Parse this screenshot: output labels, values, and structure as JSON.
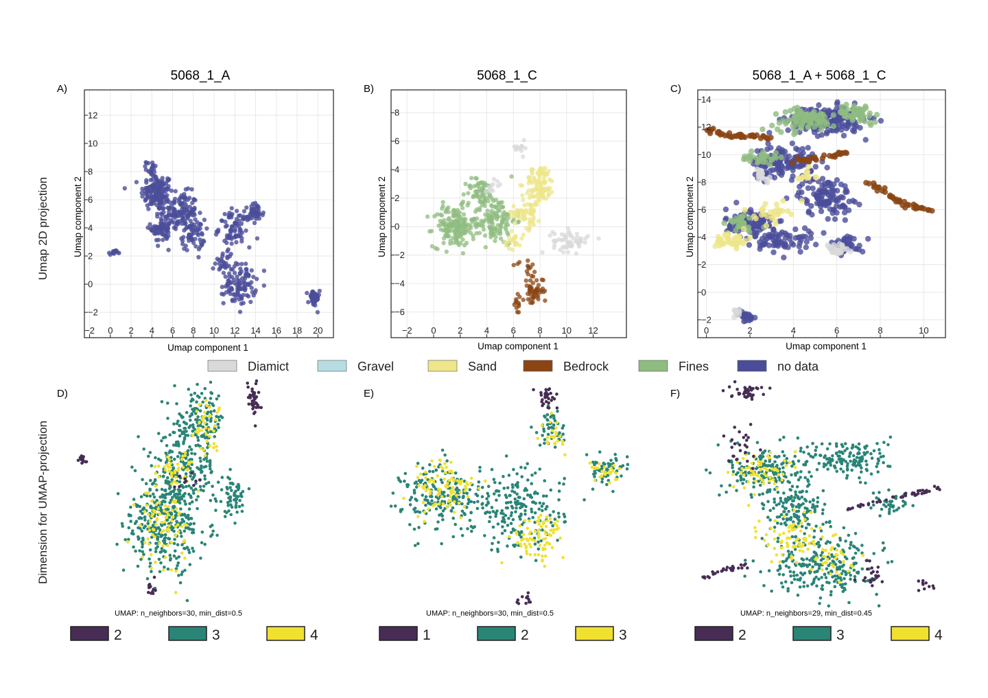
{
  "row_labels": {
    "top": "Umap 2D projection",
    "bottom": "Dimension for UMAP-projection"
  },
  "legend": [
    {
      "label": "Diamict",
      "color": "#d9d9d9"
    },
    {
      "label": "Gravel",
      "color": "#b7dce2"
    },
    {
      "label": "Sand",
      "color": "#eee68a"
    },
    {
      "label": "Bedrock",
      "color": "#8b4513"
    },
    {
      "label": "Fines",
      "color": "#8fbc80"
    },
    {
      "label": "no data",
      "color": "#4b4d9a"
    }
  ],
  "chart_data": [
    {
      "panel": "A)",
      "type": "scatter",
      "title": "5068_1_A",
      "xlabel": "Umap component 1",
      "ylabel": "Umap  component 2",
      "xlim": [
        -2.5,
        21.5
      ],
      "ylim": [
        -3.8,
        13.8
      ],
      "xticks": [
        -2,
        0,
        2,
        4,
        6,
        8,
        10,
        12,
        14,
        16,
        18,
        20
      ],
      "yticks": [
        -2,
        0,
        2,
        4,
        6,
        8,
        10,
        12
      ],
      "grid": true,
      "series": [
        {
          "name": "no data",
          "color": "#4b4d9a",
          "clusters": [
            [
              4.5,
              6.5,
              1.4,
              1.2,
              140
            ],
            [
              6.8,
              5.2,
              1.4,
              1.2,
              120
            ],
            [
              5.0,
              4.0,
              1.0,
              1.0,
              70
            ],
            [
              8.0,
              3.5,
              1.0,
              1.0,
              60
            ],
            [
              12.0,
              4.0,
              1.4,
              1.2,
              80
            ],
            [
              14.0,
              5.0,
              0.7,
              0.7,
              40
            ],
            [
              12.5,
              0.0,
              1.4,
              1.3,
              100
            ],
            [
              11.0,
              1.5,
              0.8,
              0.8,
              30
            ],
            [
              4.0,
              8.2,
              0.5,
              0.5,
              20
            ],
            [
              0.3,
              2.2,
              0.4,
              0.2,
              12
            ],
            [
              19.6,
              -1.0,
              0.5,
              0.6,
              45
            ]
          ]
        }
      ]
    },
    {
      "panel": "B)",
      "type": "scatter",
      "title": "5068_1_C",
      "xlabel": "Umap component 1",
      "ylabel": "Umap  component 2",
      "xlim": [
        -3.2,
        14.5
      ],
      "ylim": [
        -7.8,
        9.6
      ],
      "xticks": [
        -2,
        0,
        2,
        4,
        6,
        8,
        10,
        12
      ],
      "yticks": [
        -6,
        -4,
        -2,
        0,
        2,
        4,
        6,
        8
      ],
      "grid": true,
      "series": [
        {
          "name": "Fines",
          "color": "#8fbc80",
          "clusters": [
            [
              1.5,
              0.0,
              1.4,
              1.3,
              150
            ],
            [
              4.5,
              0.5,
              1.5,
              1.6,
              140
            ],
            [
              3.5,
              2.5,
              1.0,
              0.8,
              50
            ]
          ]
        },
        {
          "name": "Sand",
          "color": "#eee68a",
          "clusters": [
            [
              8.0,
              3.0,
              1.0,
              1.2,
              90
            ],
            [
              7.0,
              1.0,
              1.0,
              1.0,
              60
            ],
            [
              6.0,
              -1.0,
              0.7,
              0.5,
              20
            ]
          ]
        },
        {
          "name": "Diamict",
          "color": "#d9d9d9",
          "clusters": [
            [
              10.3,
              -1.0,
              1.2,
              0.7,
              60
            ],
            [
              6.5,
              5.5,
              0.5,
              0.4,
              12
            ],
            [
              4.5,
              3.0,
              0.6,
              0.4,
              12
            ]
          ]
        },
        {
          "name": "Bedrock",
          "color": "#8b4513",
          "clusters": [
            [
              7.5,
              -4.5,
              0.7,
              1.0,
              55
            ],
            [
              6.3,
              -5.5,
              0.3,
              0.6,
              12
            ],
            [
              7.0,
              -2.8,
              0.8,
              0.3,
              10
            ]
          ]
        }
      ]
    },
    {
      "panel": "C)",
      "type": "scatter",
      "title": "5068_1_A + 5068_1_C",
      "xlabel": "Umap component 1",
      "ylabel": "Umap  component 2",
      "xlim": [
        -0.4,
        11.0
      ],
      "ylim": [
        -3.3,
        14.7
      ],
      "xticks": [
        0,
        2,
        4,
        6,
        8,
        10
      ],
      "yticks": [
        -2,
        0,
        2,
        4,
        6,
        8,
        10,
        12,
        14
      ],
      "grid": true,
      "series": [
        {
          "name": "no data",
          "color": "#4b4d9a",
          "clusters": [
            [
              5.5,
              12.5,
              1.6,
              0.9,
              200
            ],
            [
              3.5,
              9.5,
              1.3,
              1.0,
              120
            ],
            [
              5.5,
              7.0,
              1.1,
              1.3,
              110
            ],
            [
              2.0,
              5.0,
              1.0,
              1.0,
              110
            ],
            [
              3.5,
              3.8,
              1.2,
              0.8,
              70
            ],
            [
              6.5,
              3.5,
              0.7,
              0.6,
              40
            ],
            [
              1.8,
              -1.7,
              0.4,
              0.4,
              25
            ]
          ]
        },
        {
          "name": "Fines",
          "color": "#8fbc80",
          "clusters": [
            [
              4.5,
              12.5,
              1.3,
              0.7,
              90
            ],
            [
              7.0,
              13.0,
              0.9,
              0.6,
              50
            ],
            [
              2.5,
              9.8,
              0.8,
              0.5,
              30
            ],
            [
              1.5,
              5.0,
              0.8,
              0.6,
              30
            ]
          ]
        },
        {
          "name": "Sand",
          "color": "#eee68a",
          "clusters": [
            [
              1.2,
              3.8,
              0.7,
              0.5,
              40
            ],
            [
              3.0,
              5.8,
              0.7,
              0.7,
              30
            ],
            [
              4.5,
              8.5,
              0.5,
              0.4,
              12
            ]
          ]
        },
        {
          "name": "Diamict",
          "color": "#d9d9d9",
          "clusters": [
            [
              6.0,
              3.0,
              0.5,
              0.5,
              25
            ],
            [
              2.5,
              8.5,
              0.5,
              0.6,
              15
            ],
            [
              1.4,
              -1.5,
              0.3,
              0.3,
              8
            ]
          ]
        },
        {
          "name": "Bedrock",
          "color": "#8b4513",
          "paths": [
            [
              [
                0.0,
                11.8
              ],
              [
                1.0,
                11.4
              ],
              [
                2.0,
                11.3
              ],
              [
                3.0,
                11.2
              ]
            ],
            [
              [
                7.5,
                8.0
              ],
              [
                8.5,
                6.9
              ],
              [
                9.5,
                6.2
              ],
              [
                10.5,
                5.9
              ]
            ],
            [
              [
                4.0,
                9.5
              ],
              [
                5.5,
                9.8
              ],
              [
                6.5,
                10.2
              ]
            ]
          ]
        }
      ]
    },
    {
      "panel": "D)",
      "type": "scatter",
      "note": "UMAP: n_neighbors=30, min_dist=0.5",
      "categories": [
        {
          "label": "2",
          "color": "#472d54"
        },
        {
          "label": "3",
          "color": "#2a8577"
        },
        {
          "label": "4",
          "color": "#f0e130"
        }
      ],
      "series": [
        {
          "name": "3",
          "color": "#2a8577",
          "clusters": [
            [
              0.52,
              0.4,
              0.18,
              0.22,
              330
            ],
            [
              0.6,
              0.62,
              0.15,
              0.14,
              140
            ],
            [
              0.67,
              0.82,
              0.12,
              0.12,
              140
            ],
            [
              0.84,
              0.48,
              0.07,
              0.08,
              60
            ],
            [
              0.37,
              0.35,
              0.07,
              0.15,
              60
            ]
          ]
        },
        {
          "name": "4",
          "color": "#f0e130",
          "clusters": [
            [
              0.48,
              0.35,
              0.12,
              0.15,
              80
            ],
            [
              0.55,
              0.6,
              0.08,
              0.08,
              40
            ],
            [
              0.7,
              0.8,
              0.08,
              0.1,
              40
            ]
          ]
        },
        {
          "name": "2",
          "color": "#472d54",
          "clusters": [
            [
              0.06,
              0.65,
              0.02,
              0.02,
              14
            ],
            [
              0.95,
              0.92,
              0.03,
              0.07,
              40
            ],
            [
              0.42,
              0.08,
              0.02,
              0.05,
              12
            ],
            [
              0.6,
              0.55,
              0.05,
              0.05,
              10
            ]
          ]
        }
      ]
    },
    {
      "panel": "E)",
      "type": "scatter",
      "note": "UMAP: n_neighbors=30, min_dist=0.5",
      "categories": [
        {
          "label": "1",
          "color": "#472d54"
        },
        {
          "label": "2",
          "color": "#2a8577"
        },
        {
          "label": "3",
          "color": "#f0e130"
        }
      ],
      "series": [
        {
          "name": "2",
          "color": "#2a8577",
          "clusters": [
            [
              0.25,
              0.48,
              0.16,
              0.14,
              220
            ],
            [
              0.55,
              0.42,
              0.16,
              0.16,
              200
            ],
            [
              0.9,
              0.6,
              0.08,
              0.06,
              60
            ],
            [
              0.68,
              0.78,
              0.05,
              0.07,
              50
            ]
          ]
        },
        {
          "name": "3",
          "color": "#f0e130",
          "clusters": [
            [
              0.25,
              0.52,
              0.12,
              0.12,
              90
            ],
            [
              0.62,
              0.3,
              0.1,
              0.1,
              80
            ],
            [
              0.9,
              0.6,
              0.06,
              0.04,
              25
            ],
            [
              0.68,
              0.75,
              0.04,
              0.06,
              25
            ]
          ]
        },
        {
          "name": "1",
          "color": "#472d54",
          "clusters": [
            [
              0.66,
              0.92,
              0.04,
              0.04,
              30
            ],
            [
              0.57,
              0.03,
              0.03,
              0.02,
              12
            ]
          ]
        }
      ]
    },
    {
      "panel": "F)",
      "type": "scatter",
      "note": "UMAP: n_neighbors=29, min_dist=0.45",
      "categories": [
        {
          "label": "2",
          "color": "#472d54"
        },
        {
          "label": "3",
          "color": "#2a8577"
        },
        {
          "label": "4",
          "color": "#f0e130"
        }
      ],
      "series": [
        {
          "name": "3",
          "color": "#2a8577",
          "clusters": [
            [
              0.52,
              0.18,
              0.2,
              0.12,
              250
            ],
            [
              0.4,
              0.42,
              0.12,
              0.12,
              150
            ],
            [
              0.28,
              0.6,
              0.14,
              0.1,
              170
            ],
            [
              0.62,
              0.65,
              0.15,
              0.08,
              150
            ],
            [
              0.78,
              0.45,
              0.08,
              0.05,
              40
            ]
          ]
        },
        {
          "name": "4",
          "color": "#f0e130",
          "clusters": [
            [
              0.4,
              0.3,
              0.12,
              0.1,
              80
            ],
            [
              0.25,
              0.6,
              0.1,
              0.08,
              60
            ],
            [
              0.55,
              0.2,
              0.08,
              0.06,
              30
            ]
          ]
        },
        {
          "name": "2",
          "color": "#472d54",
          "paths": [
            [
              [
                0.02,
                0.12
              ],
              [
                0.12,
                0.16
              ],
              [
                0.2,
                0.18
              ]
            ],
            [
              [
                0.6,
                0.42
              ],
              [
                0.75,
                0.47
              ],
              [
                0.9,
                0.5
              ],
              [
                0.99,
                0.52
              ]
            ]
          ],
          "clusters": [
            [
              0.2,
              0.95,
              0.06,
              0.03,
              40
            ],
            [
              0.18,
              0.7,
              0.06,
              0.08,
              25
            ],
            [
              0.7,
              0.15,
              0.06,
              0.05,
              20
            ],
            [
              0.93,
              0.1,
              0.03,
              0.05,
              10
            ]
          ]
        }
      ]
    }
  ]
}
